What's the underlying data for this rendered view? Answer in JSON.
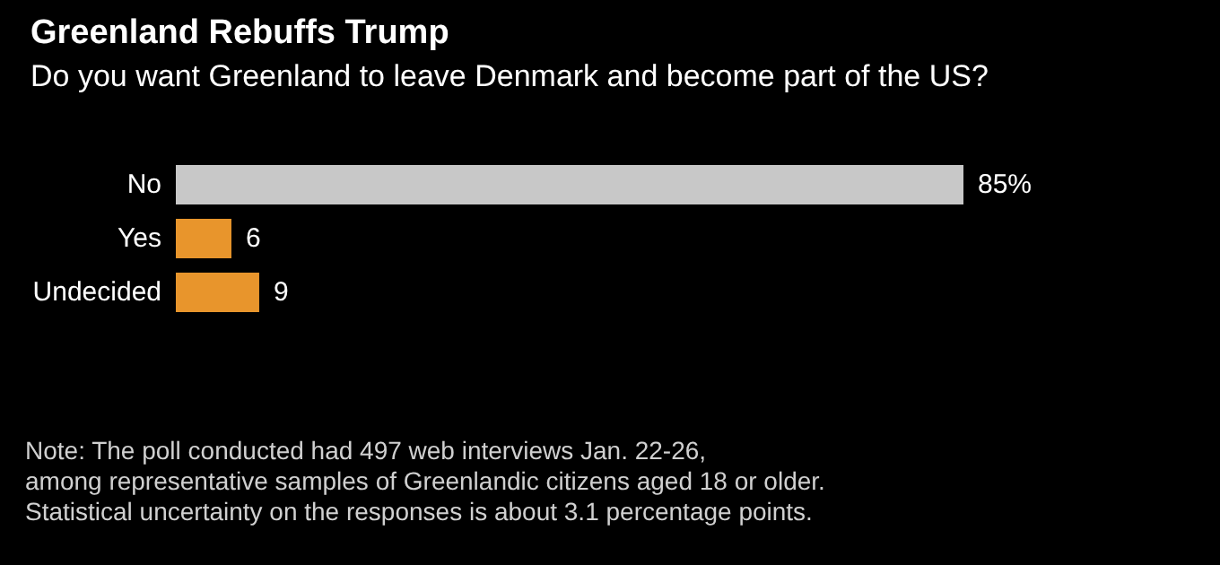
{
  "chart_data": {
    "type": "bar",
    "orientation": "horizontal",
    "title": "Greenland Rebuffs Trump",
    "subtitle": "Do you want Greenland to leave Denmark and become part of the US?",
    "categories": [
      "No",
      "Yes",
      "Undecided"
    ],
    "values": [
      85,
      6,
      9
    ],
    "colors": [
      "#c8c8c8",
      "#e8952c",
      "#e8952c"
    ],
    "value_labels": [
      "85%",
      "6",
      "9"
    ],
    "annotations": [
      "Note: The poll conducted had 497 web interviews Jan. 22-26,",
      "among representative samples of Greenlandic citizens aged 18 or older.",
      "Statistical uncertainty on the responses is about 3.1 percentage points."
    ]
  }
}
